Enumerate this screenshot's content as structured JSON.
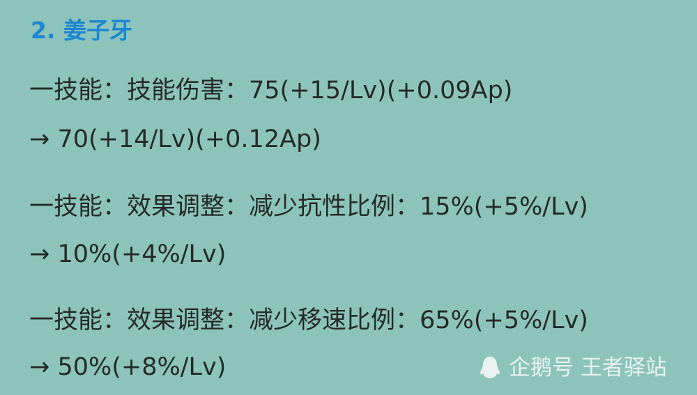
{
  "title": "2. 姜子牙",
  "lines": [
    "一技能：技能伤害：75(+15/Lv)(+0.09Ap)",
    "→ 70(+14/Lv)(+0.12Ap)",
    "一技能：效果调整：减少抗性比例：15%(+5%/Lv)",
    "→ 10%(+4%/Lv)",
    "一技能：效果调整：减少移速比例：65%(+5%/Lv)",
    "→ 50%(+8%/Lv)"
  ],
  "watermark": {
    "icon": "penguin-icon",
    "text": "企鹅号 王者驿站"
  },
  "colors": {
    "background": "#8cc4bb",
    "title": "#1c86d2",
    "text": "#252a29"
  }
}
